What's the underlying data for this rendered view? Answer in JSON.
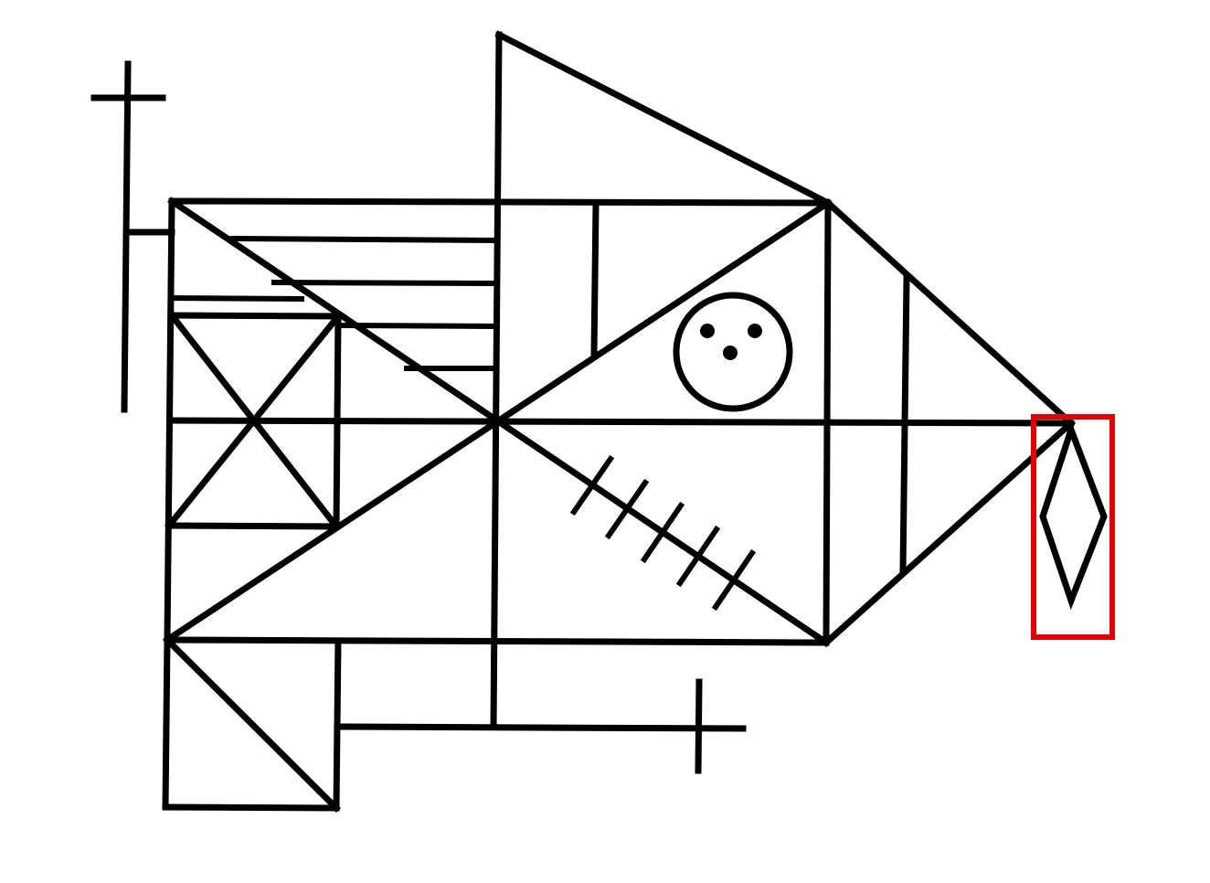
{
  "figure": {
    "description_kind": "complex geometric line figure (Rey–Osterrieth style)",
    "stroke_color": "#000000",
    "background_color": "#ffffff",
    "highlight_color": "#e00000",
    "highlighted_element": "diamond"
  }
}
